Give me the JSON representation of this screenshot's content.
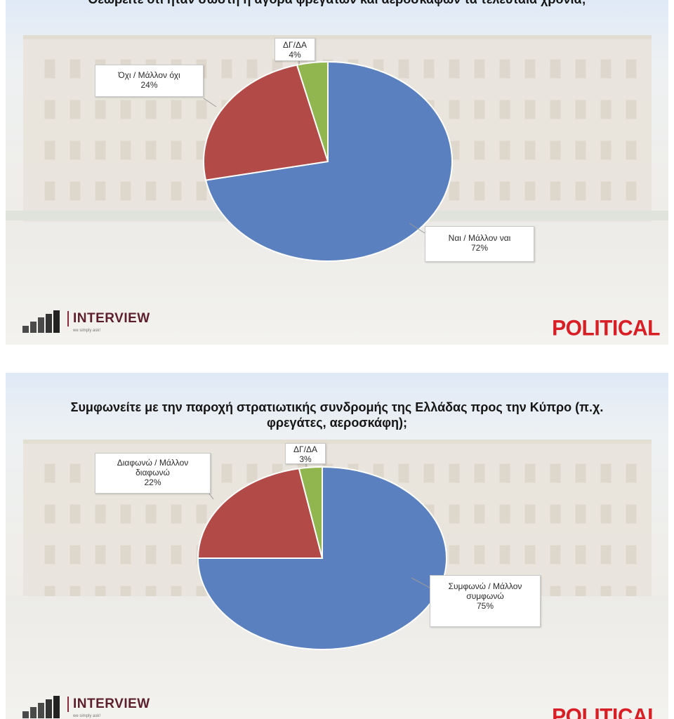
{
  "chart_data": [
    {
      "type": "pie",
      "title": "Θεωρείτε ότι ήταν σωστή η αγορά φρεγατών και αεροσκαφών τα τελευταία χρόνια;",
      "series": [
        {
          "label": "Ναι / Μάλλον ναι",
          "value": 72,
          "pct_label": "72%",
          "color": "#5a80bf"
        },
        {
          "label": "Όχι / Μάλλον όχι",
          "value": 24,
          "pct_label": "24%",
          "color": "#b24b47"
        },
        {
          "label": "ΔΓ/ΔΑ",
          "value": 4,
          "pct_label": "4%",
          "color": "#92b64f"
        }
      ]
    },
    {
      "type": "pie",
      "title": "Συμφωνείτε με την παροχή στρατιωτικής συνδρομής της Ελλάδας προς την Κύπρο (π.χ. φρεγάτες, αεροσκάφη);",
      "series": [
        {
          "label": "Συμφωνώ / Μάλλον συμφωνώ",
          "value": 75,
          "pct_label": "75%",
          "color": "#5a80bf"
        },
        {
          "label": "Διαφωνώ / Μάλλον διαφωνώ",
          "value": 22,
          "pct_label": "22%",
          "color": "#b24b47"
        },
        {
          "label": "ΔΓ/ΔΑ",
          "value": 3,
          "pct_label": "3%",
          "color": "#92b64f"
        }
      ]
    }
  ],
  "branding": {
    "interview_name": "INTERVIEW",
    "interview_tagline": "we simply ask!",
    "political_name": "POLITICAL",
    "political_color": "#d91f26"
  }
}
